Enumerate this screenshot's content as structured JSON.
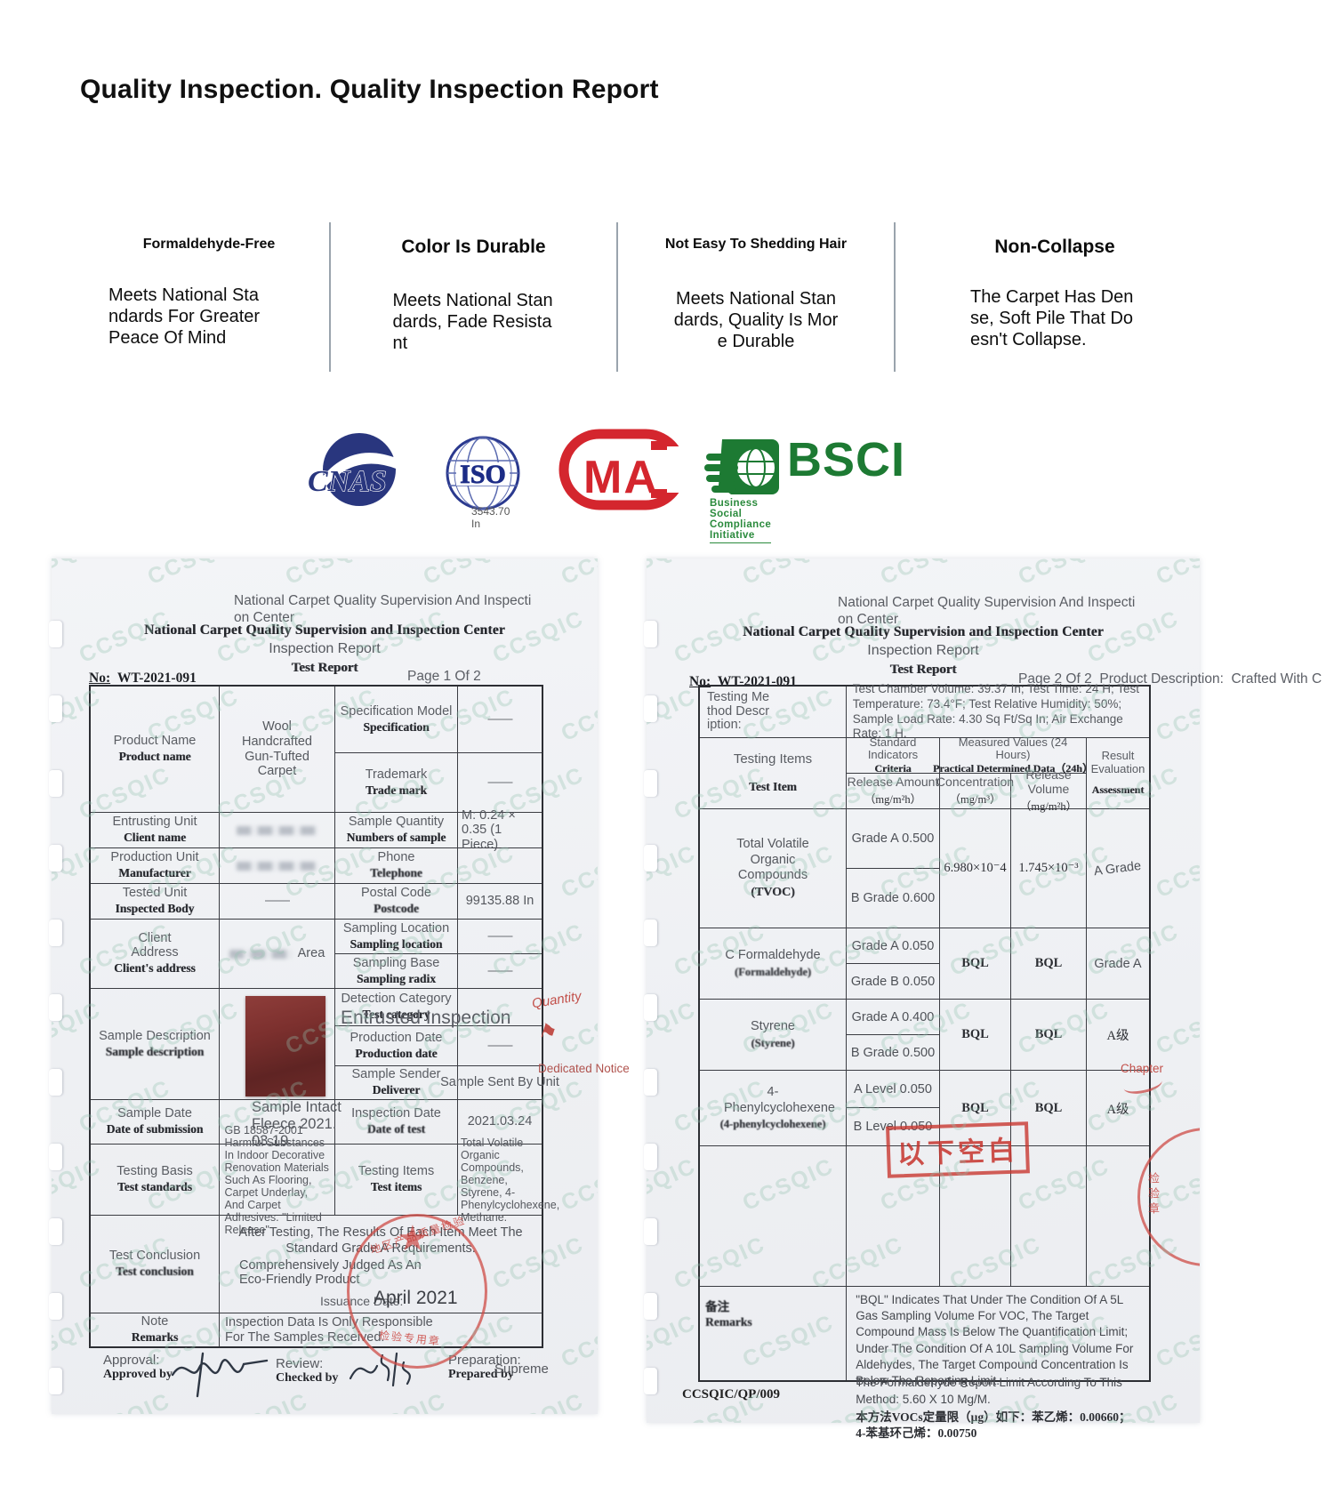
{
  "watermark": "CCSQIC",
  "title": "Quality Inspection. Quality Inspection Report",
  "features": [
    {
      "title": "Formaldehyde-Free",
      "desc": "Meets National Standards For Greater Peace Of Mind"
    },
    {
      "title": "Color Is Durable",
      "desc": "Meets National Standards, Fade Resistant"
    },
    {
      "title": "Not Easy To Shedding Hair",
      "desc": "Meets National Standards, Quality Is More Durable"
    },
    {
      "title": "Non-Collapse",
      "desc": "The Carpet Has Dense, Soft Pile That Doesn't Collapse."
    }
  ],
  "certs": {
    "cnas": "CNAS",
    "iso": "ISO",
    "iso_caption": "3543.70 In",
    "cma": "MA",
    "bsci": "BSCI",
    "bsci_caption": "Business Social Compliance Initiative"
  },
  "doc1": {
    "header_en": "National Carpet Quality Supervision And Inspection Center",
    "header_serif": "National Carpet Quality Supervision and Inspection Center",
    "report_title": "Inspection Report",
    "report_title_serif": "Test Report",
    "no_label": "No:",
    "no_value": "WT-2021-091",
    "page": "Page 1 Of 2",
    "rows": {
      "product_name": {
        "label": "Product Name",
        "label2": "Product name",
        "value": "Wool Handcrafted Gun-Tufted Carpet"
      },
      "spec": {
        "label": "Specification Model",
        "label2": "Specification",
        "value": "——"
      },
      "trademark": {
        "label": "Trademark",
        "label2": "Trade mark",
        "value": "——"
      },
      "entrusting": {
        "label": "Entrusting Unit",
        "label2": "Client name"
      },
      "sample_qty": {
        "label": "Sample Quantity",
        "label2": "Numbers of sample",
        "value": "M: 0.24 × 0.35 (1 Piece)"
      },
      "production_unit": {
        "label": "Production Unit",
        "label2": "Manufacturer"
      },
      "phone": {
        "label": "Phone",
        "label2": "Telephone"
      },
      "tested_unit": {
        "label": "Tested Unit",
        "label2": "Inspected Body",
        "value": "——"
      },
      "postal": {
        "label": "Postal Code",
        "label2": "Postcode",
        "value": "99135.88 In"
      },
      "client_addr": {
        "label": "Client Address",
        "label2": "Client's address",
        "value": "Area"
      },
      "sampling_loc": {
        "label": "Sampling Location",
        "label2": "Sampling location",
        "value": "——"
      },
      "sampling_base": {
        "label": "Sampling Base",
        "label2": "Sampling radix",
        "value": "——"
      },
      "sample_desc": {
        "label": "Sample Description",
        "label2": "Sample description",
        "caption": "Sample Intact Fleece 2021.03.19"
      },
      "detection": {
        "label": "Detection Category",
        "label2": "Test category",
        "value": "Entrusted Inspection"
      },
      "production_date": {
        "label": "Production Date",
        "label2": "Production date",
        "value": "——"
      },
      "sender": {
        "label": "Sample Sender",
        "label2": "Deliverer",
        "value": "Sample Sent By Unit",
        "annotation": "Quantity"
      },
      "sample_date": {
        "label": "Sample Date",
        "label2": "Date of submission"
      },
      "inspection_date": {
        "label": "Inspection Date",
        "label2": "Date of test",
        "value": "2021.03.24"
      },
      "testing_basis": {
        "label": "Testing Basis",
        "label2": "Test standards",
        "value": "GB 18587-2001 Harmful Substances In Indoor Decorative Renovation Materials Such As Flooring, Carpet Underlay, And Carpet Adhesives. \"Limited Release\""
      },
      "testing_items": {
        "label": "Testing Items",
        "label2": "Test items",
        "value": "Total Volatile Organic Compounds, Benzene, Styrene, 4-Phenylcyclohexene, Methane.",
        "annotation": "Dedicated Notice"
      },
      "conclusion": {
        "label": "Test Conclusion",
        "label2": "Test conclusion",
        "line1": "After Testing, The Results Of Each Item Meet The Standard Grade A Requirements.",
        "line2": "Comprehensively Judged As An",
        "line3": "Eco-Friendly Product",
        "issuance_label": "Issuance Date:",
        "issuance_value": "April 2021"
      },
      "note": {
        "label": "Note",
        "label2": "Remarks",
        "value": "Inspection Data Is Only Responsible For The Samples Received."
      }
    },
    "stamp": {
      "arc_text": "地区产品质量检验",
      "bottom_text": "检验专用章"
    },
    "footer": {
      "approval": "Approval:",
      "approved_by": "Approved by",
      "review": "Review:",
      "checked_by": "Checked by",
      "preparation": "Preparation:",
      "prepared_by": "Prepared by",
      "preparer": "Supreme"
    }
  },
  "doc2": {
    "header_en": "National Carpet Quality Supervision And Inspection Center",
    "header_serif": "National Carpet Quality Supervision and Inspection Center",
    "report_title": "Inspection Report",
    "report_title_serif": "Test Report",
    "no_label": "No:",
    "no_value": "WT-2021-091",
    "page": "Page 2 Of 2",
    "product_desc_label": "Product Description:",
    "product_desc_value": "Crafted With C",
    "method": {
      "label": "Testing Method Description:",
      "value": "Test Chamber Volume: 39.37 In; Test Time: 24 H; Test Temperature: 73.4°F; Test Relative Humidity: 50%; Sample Load Rate: 4.30 Sq Ft/Sq In; Air Exchange Rate: 1 H."
    },
    "table": {
      "h_items": "Testing Items",
      "h_items2": "Test Item",
      "h_standard": "Standard Indicators",
      "h_standard2": "Criteria",
      "h_measured": "Measured Values (24 Hours)",
      "h_measured2": "Practical Determined Data（24h）",
      "h_result": "Result Evaluation",
      "h_result2": "Assessment",
      "h_release": "Release Amount",
      "h_release_unit": "（mg/m²h）",
      "h_conc": "Concentration",
      "h_conc_unit": "（mg/m³）",
      "h_vol": "Release Volume",
      "h_vol_unit": "（mg/m²h）",
      "rows": [
        {
          "item": "Total Volatile Organic Compounds",
          "item2": "(TVOC)",
          "std_a": "Grade A  0.500",
          "std_b": "B Grade  0.600",
          "conc": "6.980×10⁻4",
          "vol": "1.745×10⁻³",
          "result": "A Grade"
        },
        {
          "item": "C Formaldehyde",
          "item2": "(Formaldehyde)",
          "std_a": "Grade A  0.050",
          "std_b": "Grade B  0.050",
          "conc": "BQL",
          "vol": "BQL",
          "result": "Grade A"
        },
        {
          "item": "Styrene",
          "item2": "(Styrene)",
          "std_a": "Grade A  0.400",
          "std_b": "B Grade  0.500",
          "conc": "BQL",
          "vol": "BQL",
          "result": "A级"
        },
        {
          "item": "4-Phenylcyclohexene",
          "item2": "(4-phenylcyclohexene)",
          "std_a": "A Level  0.050",
          "std_b": "B Level  0.050",
          "conc": "BQL",
          "vol": "BQL",
          "result": "A级"
        }
      ],
      "blank_stamp": "以下空白"
    },
    "remarks": {
      "label": "备注",
      "label2": "Remarks",
      "text1": "\"BQL\" Indicates That Under The Condition Of A 5L Gas Sampling Volume For VOC, The Target Compound Mass Is Below The Quantification Limit; Under The Condition Of A 10L Sampling Volume For Aldehydes, The Target Compound Concentration Is Below The Reporting Limit.",
      "text2": "The Formaldehyde Report Limit According To This Method: 5.60 X 10 Mg/M.",
      "text3": "本方法VOCs定量限（μg）如下：苯乙烯：0.00660；4-苯基环己烯：0.00750"
    },
    "chapter": "Chapter",
    "seal_text": "检验章",
    "doc_code": "CCSQIC/QP/009"
  }
}
